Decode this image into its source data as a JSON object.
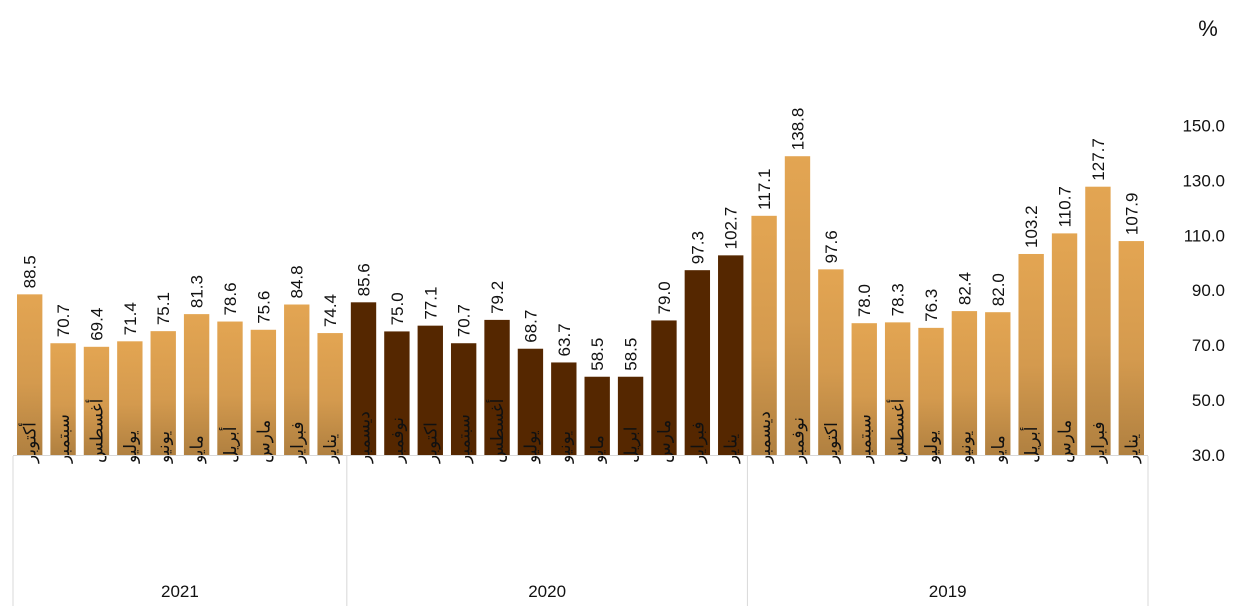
{
  "chart_data": {
    "type": "bar",
    "unit_label": "%",
    "ylim": [
      30,
      160
    ],
    "yticks": [
      30.0,
      50.0,
      70.0,
      90.0,
      110.0,
      130.0,
      150.0
    ],
    "y_axis_side": "right",
    "grid": false,
    "colors": {
      "light": "#E3A552",
      "light_dark": "#B08040",
      "dark": "#552700"
    },
    "groups": [
      {
        "year": "2021",
        "style": "light",
        "months": [
          "أكتوبر",
          "سبتمبر",
          "أغسطس",
          "يوليو",
          "يونيو",
          "مايو",
          "أبريل",
          "مارس",
          "فبراير",
          "يناير"
        ],
        "values": [
          88.5,
          70.7,
          69.4,
          71.4,
          75.1,
          81.3,
          78.6,
          75.6,
          84.8,
          74.4
        ]
      },
      {
        "year": "2020",
        "style": "dark",
        "months": [
          "ديسمبر",
          "نوفمبر",
          "اكتوبر",
          "سبتمبر",
          "أغسطس",
          "يوليو",
          "يونيو",
          "مايو",
          "ابريل",
          "مارس",
          "فبراير",
          "يناير"
        ],
        "values": [
          85.6,
          75.0,
          77.1,
          70.7,
          79.2,
          68.7,
          63.7,
          58.5,
          58.5,
          79.0,
          97.3,
          102.7
        ]
      },
      {
        "year": "2019",
        "style": "light",
        "months": [
          "ديسمبر",
          "نوفمبر",
          "اكتوبر",
          "سبتمبر",
          "أغسطس",
          "يوليو",
          "يونيو",
          "مايو",
          "أبريل",
          "مارس",
          "فبراير",
          "يناير"
        ],
        "values": [
          117.1,
          138.8,
          97.6,
          78.0,
          78.3,
          76.3,
          82.4,
          82.0,
          103.2,
          110.7,
          127.7,
          107.9
        ]
      }
    ]
  }
}
